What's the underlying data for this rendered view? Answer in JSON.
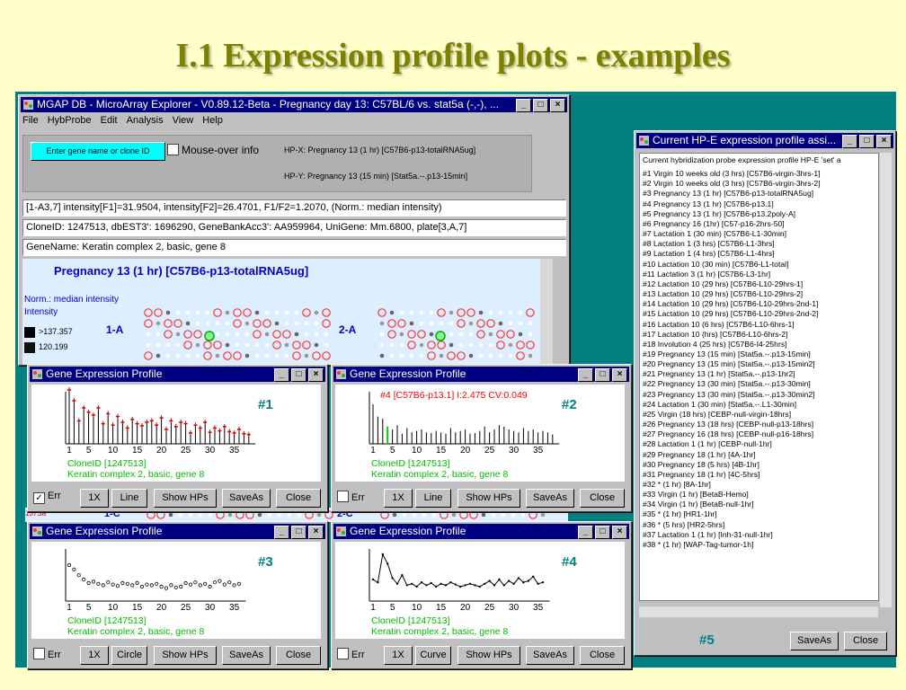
{
  "slide_title": "I.1 Expression profile plots - examples",
  "main_window": {
    "title": "MGAP DB - MicroArray Explorer - V0.89.12-Beta - Pregnancy day 13: C57BL/6 vs. stat5a (-,-), ...",
    "menu": [
      "File",
      "HybProbe",
      "Edit",
      "Analysis",
      "View",
      "Help"
    ],
    "search_button": "Enter gene name or clone ID",
    "mouseover_label": "Mouse-over info",
    "hpx": "HP-X: Pregnancy 13 (1 hr) [C57B6-p13-totalRNA5ug]",
    "hpy": "HP-Y: Pregnancy 13 (15 min) [Stat5a.--.p13-15min]",
    "info_line": "[1-A3,7] intensity[F1]=31.9504, intensity[F2]=26.4701, F1/F2=1.2070, (Norm.: median intensity)",
    "clone_line": "CloneID: 1247513, dbEST3': 1696290, GeneBankAcc3': AA959964, UniGene: Mm.6800, plate[3,A,7]",
    "gene_line": "GeneName: Keratin complex 2, basic, gene 8",
    "array_title": "Pregnancy 13 (1 hr) [C57B6-p13-totalRNA5ug]",
    "norm_label": "Norm.: median intensity",
    "intensity_label": "Intensity",
    "legend_values": [
      ">137.357",
      "120.199"
    ],
    "block_labels": [
      "1-A",
      "2-A",
      "1-C",
      "2-C"
    ],
    "bottom_partial": "137Sa"
  },
  "profile_windows": [
    {
      "title": "Gene Expression Profile",
      "number": "#1",
      "err_checked": true,
      "zoom": "1X",
      "mode": "Line",
      "annotation": ""
    },
    {
      "title": "Gene Expression Profile",
      "number": "#2",
      "err_checked": false,
      "zoom": "1X",
      "mode": "Line",
      "annotation": "#4 [C57B6-p13.1] I:2.475 CV:0.049"
    },
    {
      "title": "Gene Expression Profile",
      "number": "#3",
      "err_checked": false,
      "zoom": "1X",
      "mode": "Circle",
      "annotation": ""
    },
    {
      "title": "Gene Expression Profile",
      "number": "#4",
      "err_checked": false,
      "zoom": "1X",
      "mode": "Curve",
      "annotation": ""
    }
  ],
  "profile_common": {
    "x_ticks": [
      "1",
      "5",
      "10",
      "15",
      "20",
      "25",
      "30",
      "35"
    ],
    "clone_id": "CloneID [1247513]",
    "gene_name": "Keratin complex 2, basic, gene 8",
    "err_label": "Err",
    "show_hps": "Show HPs",
    "save_as": "SaveAs",
    "close": "Close"
  },
  "hp_window": {
    "title": "Current HP-E expression profile assi...",
    "header": "Current hybridization probe expression profile HP-E 'set' a",
    "items": [
      "#1  Virgin 10 weeks old  (3 hrs) [C57B6-virgin-3hrs-1]",
      "#2  Virgin 10 weeks old  (3 hrs) [C57B6-virgin-3hrs-2]",
      "#3  Pregnancy 13  (1 hr) [C57B6-p13-totalRNA5ug]",
      "#4  Pregnancy 13  (1 hr) [C57B6-p13.1]",
      "#5  Pregnancy 13  (1 hr) [C57B6-p13.2poly-A]",
      "#6  Pregnancy 16  (1hr) [C57-p16-2hrs-50]",
      "#7  Lactation 1  (30 min) [C57B6-L1-30min]",
      "#8  Lactation 1  (3 hrs) [C57B6-L1-3hrs]",
      "#9  Lactation 1  (4 hrs) [C57B6-L1-4hrs]",
      "#10  Lactation 10  (30 min) [C57B6-L1-total]",
      "#11  Lactation 3  (1 hr) [C57B6-L3-1hr]",
      "#12  Lactation 10  (29 hrs) [C57B6-L10-29hrs-1]",
      "#13  Lactation 10  (29 hrs) [C57B6-L10-29hrs-2]",
      "#14  Lactation 10  (29 hrs) [C57B6-L10-29hrs-2nd-1]",
      "#15  Lactation 10  (29 hrs) [C57B6-L10-29hrs-2nd-2]",
      "#16  Lactation 10  (6 hrs) [C57B6-L10-6hrs-1]",
      "#17  Lactation 10  (hrs) [C57B6-L10-6hrs-2]",
      "#18  Involution 4  (25 hrs) [C57B6-I4-25hrs]",
      "#19  Pregnancy 13  (15 min) [Stat5a.--.p13-15min]",
      "#20  Pregnancy 13  (15 min) [Stat5a.--.p13-15min2]",
      "#21  Pregnancy 13  (1 hr) [Stat5a.--.p13-1hr2]",
      "#22  Pregnancy 13  (30 min) [Stat5a.--.p13-30min]",
      "#23  Pregnancy 13  (30 min) [Stat5a.--.p13-30min2]",
      "#24  Lactation 1  (30 min) [Stat5a.--.L1-30min]",
      "#25  Virgin  (18 hrs) [CEBP-null-virgin-18hrs]",
      "#26  Pregnancy 13  (18 hrs) [CEBP-null-p13-18hrs]",
      "#27  Pregnancy 16  (18 hrs) [CEBP-null-p16-18hrs]",
      "#28  Lactation 1  (1 hr) [CEBP-null-1hr]",
      "#29  Pregnancy 18  (1 hr) [4A-1hr]",
      "#30  Pregnancy 18  (5 hrs) [4B-1hr]",
      "#31  Pregnancy 18  (1 hr) [4C-5hrs]",
      "#32  *  (1 hr) [8A-1hr]",
      "#33  Virgin  (1 hr) [BetaB-Hemo]",
      "#34  Virgin  (1 hr) [BetaB-null-1hr]",
      "#35  *  (1 hr) [HR1-1hr]",
      "#36  *  (5 hrs) [HR2-5hrs]",
      "#37  Lactation 1  (1 hr) [Inh-31-null-1hr]",
      "#38  *  (1 hr) [WAP-Tag-tumor-1h]"
    ],
    "number": "#5",
    "save_as": "SaveAs",
    "close": "Close"
  },
  "profile_data": {
    "p1": [
      7.5,
      6.0,
      3.2,
      5.0,
      4.4,
      4.0,
      5.0,
      2.8,
      4.2,
      2.6,
      3.8,
      3.0,
      2.2,
      3.4,
      2.8,
      2.5,
      3.0,
      3.2,
      2.6,
      3.6,
      2.0,
      3.2,
      2.4,
      3.0,
      2.8,
      1.5,
      2.6,
      2.2,
      3.0,
      1.6,
      2.2,
      1.8,
      2.4,
      1.7,
      1.5,
      2.0,
      1.4,
      1.3
    ],
    "p2": [
      5.5,
      3.8,
      3.5,
      2.4,
      2.0,
      2.6,
      1.4,
      2.2,
      1.6,
      1.8,
      2.0,
      1.6,
      1.5,
      1.8,
      1.6,
      1.4,
      2.2,
      1.6,
      1.8,
      2.0,
      1.4,
      1.5,
      1.8,
      2.4,
      1.6,
      2.0,
      2.6,
      2.4,
      2.0,
      1.8,
      1.6,
      2.2,
      1.8,
      2.0,
      1.6,
      1.8,
      1.6,
      1.3
    ],
    "p3": [
      5.0,
      4.4,
      3.6,
      3.0,
      2.5,
      2.7,
      2.4,
      2.2,
      2.6,
      2.3,
      2.1,
      2.5,
      2.4,
      2.2,
      2.5,
      2.0,
      2.3,
      2.2,
      2.4,
      2.0,
      1.8,
      2.2,
      1.9,
      2.0,
      2.5,
      2.3,
      2.6,
      2.2,
      2.4,
      2.0,
      2.6,
      2.8,
      2.3,
      2.6,
      2.2,
      2.4
    ],
    "p4": [
      3.0,
      2.6,
      6.5,
      5.2,
      3.2,
      2.4,
      3.6,
      2.2,
      2.4,
      2.0,
      2.6,
      2.2,
      2.5,
      2.0,
      2.4,
      2.2,
      2.6,
      2.3,
      2.0,
      2.2,
      2.4,
      2.2,
      2.0,
      2.4,
      2.8,
      2.2,
      3.0,
      2.2,
      2.8,
      2.4,
      3.2,
      2.6,
      2.8,
      3.4,
      2.4,
      2.6
    ]
  },
  "colors": {
    "teal": "#008080",
    "title_bar": "#000080",
    "highlight": "#00ffff",
    "plot_red": "#cc0000",
    "plot_green": "#00bb00"
  }
}
